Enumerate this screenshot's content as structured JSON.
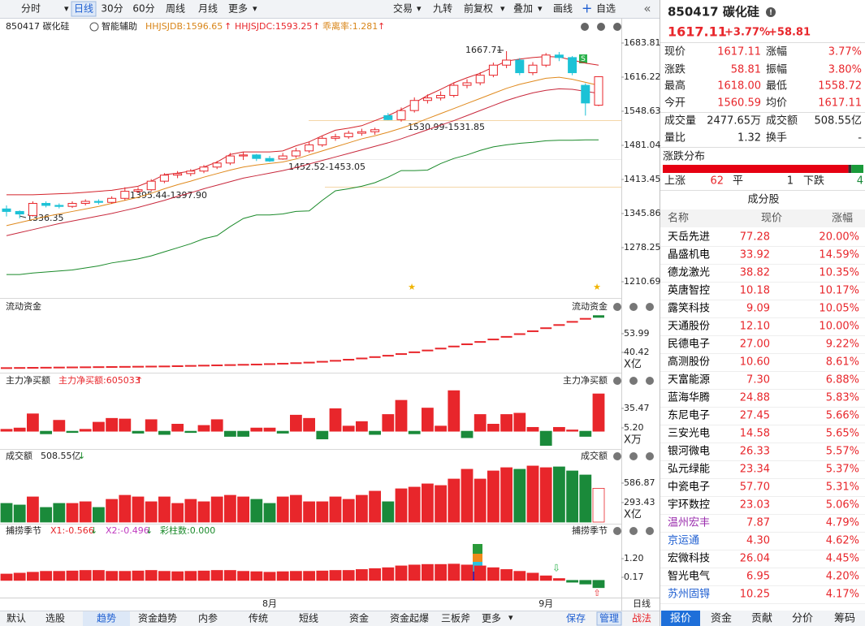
{
  "toolbar": {
    "periods": [
      "分时",
      "日线",
      "30分",
      "60分",
      "周线",
      "月线",
      "更多"
    ],
    "active": 1,
    "tools": [
      "交易",
      "九转",
      "前复权",
      "叠加",
      "画线",
      "自选"
    ]
  },
  "indicator_bar": {
    "code_name": "850417 碳化硅",
    "assist": "智能辅助",
    "hhjsjdb": "HHJSJDB:1596.65",
    "hhjsjdc": "HHJSJDC:1593.25",
    "bias": "乖离率:1.281"
  },
  "kline": {
    "ylim": [
      1181.72,
      1701.51
    ],
    "yticks": [
      1683.81,
      1616.22,
      1548.63,
      1481.04,
      1413.45,
      1345.86,
      1278.25,
      1210.69
    ],
    "candles": [
      [
        1355,
        1362,
        1340,
        1350
      ],
      [
        1350,
        1352,
        1336.35,
        1345
      ],
      [
        1342,
        1370,
        1340,
        1366
      ],
      [
        1366,
        1370,
        1358,
        1362
      ],
      [
        1362,
        1366,
        1356,
        1360
      ],
      [
        1360,
        1370,
        1357,
        1366
      ],
      [
        1366,
        1374,
        1362,
        1370
      ],
      [
        1370,
        1374,
        1364,
        1368
      ],
      [
        1368,
        1380,
        1365,
        1376
      ],
      [
        1376,
        1397.9,
        1372,
        1390
      ],
      [
        1390,
        1398,
        1386,
        1393
      ],
      [
        1393,
        1414,
        1390,
        1410
      ],
      [
        1410,
        1426,
        1406,
        1422
      ],
      [
        1422,
        1430,
        1416,
        1425
      ],
      [
        1425,
        1434,
        1420,
        1430
      ],
      [
        1430,
        1442,
        1426,
        1438
      ],
      [
        1438,
        1450,
        1434,
        1446
      ],
      [
        1446,
        1466,
        1442,
        1460
      ],
      [
        1460,
        1468,
        1452,
        1462
      ],
      [
        1462,
        1464,
        1450,
        1455
      ],
      [
        1455,
        1460,
        1448,
        1450
      ],
      [
        1454,
        1466,
        1452.52,
        1460
      ],
      [
        1460,
        1476,
        1456,
        1470
      ],
      [
        1470,
        1488,
        1466,
        1482
      ],
      [
        1482,
        1500,
        1478,
        1495
      ],
      [
        1495,
        1504,
        1490,
        1498
      ],
      [
        1498,
        1510,
        1494,
        1505
      ],
      [
        1505,
        1514,
        1500,
        1508
      ],
      [
        1508,
        1516,
        1502,
        1512
      ],
      [
        1540,
        1545,
        1530.99,
        1532
      ],
      [
        1532,
        1556,
        1528,
        1550
      ],
      [
        1550,
        1576,
        1546,
        1570
      ],
      [
        1570,
        1582,
        1564,
        1575
      ],
      [
        1575,
        1588,
        1570,
        1580
      ],
      [
        1580,
        1606,
        1576,
        1600
      ],
      [
        1600,
        1612,
        1594,
        1605
      ],
      [
        1605,
        1626,
        1600,
        1620
      ],
      [
        1620,
        1645,
        1616,
        1640
      ],
      [
        1640,
        1667.71,
        1634,
        1650
      ],
      [
        1650,
        1654,
        1620,
        1625
      ],
      [
        1625,
        1646,
        1620,
        1640
      ],
      [
        1640,
        1664,
        1636,
        1660
      ],
      [
        1660,
        1666,
        1648,
        1655
      ],
      [
        1655,
        1658,
        1620,
        1625
      ],
      [
        1600,
        1604,
        1540,
        1565
      ],
      [
        1560.59,
        1618,
        1558.72,
        1617.11
      ]
    ],
    "lines": [
      {
        "color": "#d4232b",
        "values": [
          1383,
          1383,
          1383,
          1384,
          1385,
          1386,
          1388,
          1390,
          1392,
          1396,
          1400,
          1410,
          1423,
          1426,
          1430,
          1438,
          1448,
          1463,
          1468,
          1468,
          1468,
          1470,
          1480,
          1488,
          1500,
          1511,
          1515,
          1520,
          1530,
          1540,
          1552,
          1565,
          1580,
          1592,
          1605,
          1615,
          1624,
          1636,
          1648,
          1652,
          1655,
          1657,
          1656,
          1650,
          1644,
          1640
        ]
      },
      {
        "color": "#e08a1e",
        "values": [
          1322,
          1328,
          1334,
          1340,
          1345,
          1350,
          1355,
          1360,
          1366,
          1372,
          1378,
          1386,
          1395,
          1403,
          1410,
          1418,
          1425,
          1432,
          1438,
          1442,
          1445,
          1448,
          1454,
          1462,
          1470,
          1478,
          1486,
          1494,
          1500,
          1507,
          1515,
          1524,
          1534,
          1544,
          1554,
          1564,
          1574,
          1584,
          1594,
          1602,
          1608,
          1614,
          1616,
          1612,
          1606,
          1600
        ]
      },
      {
        "color": "#c8283c",
        "values": [
          1302,
          1308,
          1314,
          1320,
          1326,
          1331,
          1336,
          1341,
          1346,
          1352,
          1358,
          1365,
          1372,
          1380,
          1387,
          1395,
          1402,
          1409,
          1416,
          1421,
          1426,
          1431,
          1437,
          1444,
          1451,
          1458,
          1465,
          1472,
          1479,
          1486,
          1494,
          1503,
          1512,
          1521,
          1530,
          1540,
          1550,
          1560,
          1570,
          1578,
          1585,
          1590,
          1593,
          1592,
          1588,
          1584
        ]
      },
      {
        "color": "#1a8a2a",
        "values": [
          1225,
          1225,
          1228,
          1230,
          1232,
          1234,
          1238,
          1242,
          1248,
          1252,
          1256,
          1262,
          1270,
          1278,
          1286,
          1296,
          1302,
          1320,
          1336,
          1343,
          1343,
          1345,
          1350,
          1351,
          1372,
          1391,
          1395,
          1400,
          1407,
          1418,
          1431,
          1431,
          1432,
          1445,
          1455,
          1462,
          1471,
          1478,
          1482,
          1485,
          1487,
          1490,
          1491,
          1491,
          1492,
          1492
        ]
      }
    ],
    "annotations": [
      "1667.71",
      "1530.99-1531.85",
      "1452.52-1453.05",
      "1395.44-1397.90",
      "1336.35"
    ],
    "dates": [
      null,
      null,
      null,
      null,
      null,
      null,
      null,
      null,
      null,
      null,
      null,
      null,
      null,
      null,
      null,
      null,
      null,
      null,
      null,
      null,
      "8月",
      null,
      null,
      null,
      null,
      null,
      null,
      null,
      null,
      null,
      null,
      null,
      null,
      null,
      null,
      null,
      null,
      null,
      null,
      null,
      null,
      "9月",
      null,
      null,
      null,
      null
    ],
    "period": "日线"
  },
  "fund": {
    "title": "流动资金",
    "ylim": [
      26.85,
      72.28
    ],
    "yticks": [
      53.99,
      40.42
    ],
    "unit": "X亿",
    "values": [
      29.0,
      29.1,
      29.2,
      29.3,
      29.4,
      29.5,
      29.6,
      29.7,
      29.8,
      29.9,
      30.0,
      30.1,
      30.2,
      30.4,
      30.6,
      30.8,
      31.0,
      31.2,
      31.4,
      31.6,
      31.9,
      32.2,
      32.6,
      33.0,
      33.6,
      34.3,
      35.1,
      36.0,
      37.0,
      38.0,
      39.2,
      40.5,
      41.8,
      43.2,
      44.7,
      46.3,
      48.0,
      49.8,
      51.7,
      53.7,
      55.8,
      58.0,
      60.3,
      62.6,
      64.8,
      66.8
    ]
  },
  "net_buy": {
    "title": "主力净买额",
    "readout": "主力净买额:605033",
    "ylim": [
      -23.8,
      70.78
    ],
    "yticks": [
      35.47,
      {
        "value": 5.2,
        "label": "5.20"
      }
    ],
    "unit": "X万",
    "values": [
      3,
      5,
      27,
      -4,
      17,
      -2,
      3,
      14,
      20,
      19,
      -3,
      18,
      -5,
      11,
      -2,
      9,
      18,
      -8,
      -8,
      5,
      5,
      -3,
      25,
      20,
      -12,
      35,
      8,
      15,
      -5,
      26,
      48,
      -4,
      36,
      8,
      63,
      -10,
      26,
      11,
      26,
      28,
      6,
      -22,
      6,
      2,
      -8,
      58
    ]
  },
  "turnover": {
    "title": "成交额",
    "readout": "508.55亿",
    "ylim": [
      0,
      917
    ],
    "yticks": [
      586.87,
      293.43
    ],
    "unit": "X亿",
    "values": [
      281,
      257,
      379,
      220,
      281,
      281,
      306,
      220,
      342,
      403,
      379,
      306,
      379,
      281,
      342,
      306,
      379,
      403,
      379,
      342,
      281,
      379,
      403,
      306,
      306,
      379,
      342,
      403,
      465,
      306,
      501,
      526,
      575,
      550,
      648,
      795,
      648,
      770,
      819,
      795,
      844,
      819,
      831,
      770,
      709,
      508.55
    ]
  },
  "season": {
    "title": "捕捞季节",
    "x1": "X1:-0.566",
    "x2": "X2:-0.496",
    "bars": "彩柱数:0.000",
    "ylim": [
      -0.86,
      2.1
    ],
    "yticks": [
      {
        "value": 1.2,
        "label": "1.20"
      },
      0.17
    ],
    "values": [
      0.35,
      0.4,
      0.45,
      0.5,
      0.5,
      0.52,
      0.55,
      0.55,
      0.5,
      0.5,
      0.52,
      0.55,
      0.5,
      0.48,
      0.5,
      0.52,
      0.55,
      0.55,
      0.5,
      0.48,
      0.45,
      0.48,
      0.5,
      0.5,
      0.52,
      0.55,
      0.55,
      0.6,
      0.65,
      0.7,
      0.8,
      0.85,
      0.88,
      0.88,
      0.9,
      0.85,
      0.8,
      0.7,
      0.6,
      0.5,
      0.4,
      0.25,
      0.1,
      -0.1,
      -0.2,
      -0.4
    ]
  },
  "bottom_tabs": {
    "items": [
      "默认",
      "选股",
      "趋势",
      "资金趋势",
      "内参",
      "传统",
      "短线",
      "资金",
      "资金起爆",
      "三板斧",
      "更多"
    ],
    "active": 2,
    "actions": [
      "保存",
      "管理",
      "战法"
    ]
  },
  "quote": {
    "title": "850417 碳化硅",
    "price": "1617.11",
    "change_pct": "+3.77%",
    "change": "+58.81",
    "fields": [
      [
        "现价",
        "1617.11",
        "涨幅",
        "3.77%"
      ],
      [
        "涨跌",
        "58.81",
        "振幅",
        "3.80%"
      ],
      [
        "最高",
        "1618.00",
        "最低",
        "1558.72"
      ],
      [
        "今开",
        "1560.59",
        "均价",
        "1617.11"
      ],
      [
        "成交量",
        "2477.65万",
        "成交额",
        "508.55亿"
      ],
      [
        "量比",
        "1.32",
        "换手",
        "-"
      ]
    ]
  },
  "distribution": {
    "title": "涨跌分布",
    "up_label": "上涨",
    "up": 62,
    "flat_label": "平",
    "flat": 1,
    "down_label": "下跌",
    "down": 4
  },
  "constituents": {
    "title": "成分股",
    "columns": [
      "名称",
      "现价",
      "涨幅"
    ],
    "rows": [
      {
        "name": "天岳先进",
        "price": "77.28",
        "pct": "20.00%",
        "color": "#000000"
      },
      {
        "name": "晶盛机电",
        "price": "33.92",
        "pct": "14.59%",
        "color": "#000000"
      },
      {
        "name": "德龙激光",
        "price": "38.82",
        "pct": "10.35%",
        "color": "#000000"
      },
      {
        "name": "英唐智控",
        "price": "10.18",
        "pct": "10.17%",
        "color": "#000000"
      },
      {
        "name": "露笑科技",
        "price": "9.09",
        "pct": "10.05%",
        "color": "#000000"
      },
      {
        "name": "天通股份",
        "price": "12.10",
        "pct": "10.00%",
        "color": "#000000"
      },
      {
        "name": "民德电子",
        "price": "27.00",
        "pct": "9.22%",
        "color": "#000000"
      },
      {
        "name": "高测股份",
        "price": "10.60",
        "pct": "8.61%",
        "color": "#000000"
      },
      {
        "name": "天富能源",
        "price": "7.30",
        "pct": "6.88%",
        "color": "#000000"
      },
      {
        "name": "蓝海华腾",
        "price": "24.88",
        "pct": "5.83%",
        "color": "#000000"
      },
      {
        "name": "东尼电子",
        "price": "27.45",
        "pct": "5.66%",
        "color": "#000000"
      },
      {
        "name": "三安光电",
        "price": "14.58",
        "pct": "5.65%",
        "color": "#000000"
      },
      {
        "name": "银河微电",
        "price": "26.33",
        "pct": "5.57%",
        "color": "#000000"
      },
      {
        "name": "弘元绿能",
        "price": "23.34",
        "pct": "5.37%",
        "color": "#000000"
      },
      {
        "name": "中瓷电子",
        "price": "57.70",
        "pct": "5.31%",
        "color": "#000000"
      },
      {
        "name": "宇环数控",
        "price": "23.03",
        "pct": "5.06%",
        "color": "#000000"
      },
      {
        "name": "温州宏丰",
        "price": "7.87",
        "pct": "4.79%",
        "color": "#9b2fae"
      },
      {
        "name": "京运通",
        "price": "4.30",
        "pct": "4.62%",
        "color": "#1f5fd1"
      },
      {
        "name": "宏微科技",
        "price": "26.04",
        "pct": "4.45%",
        "color": "#000000"
      },
      {
        "name": "智光电气",
        "price": "6.95",
        "pct": "4.20%",
        "color": "#000000"
      },
      {
        "name": "苏州固锝",
        "price": "10.25",
        "pct": "4.17%",
        "color": "#1f5fd1"
      }
    ]
  },
  "panel_tabs": {
    "items": [
      "报价",
      "资金",
      "贡献",
      "分价",
      "筹码"
    ],
    "active": 0
  }
}
